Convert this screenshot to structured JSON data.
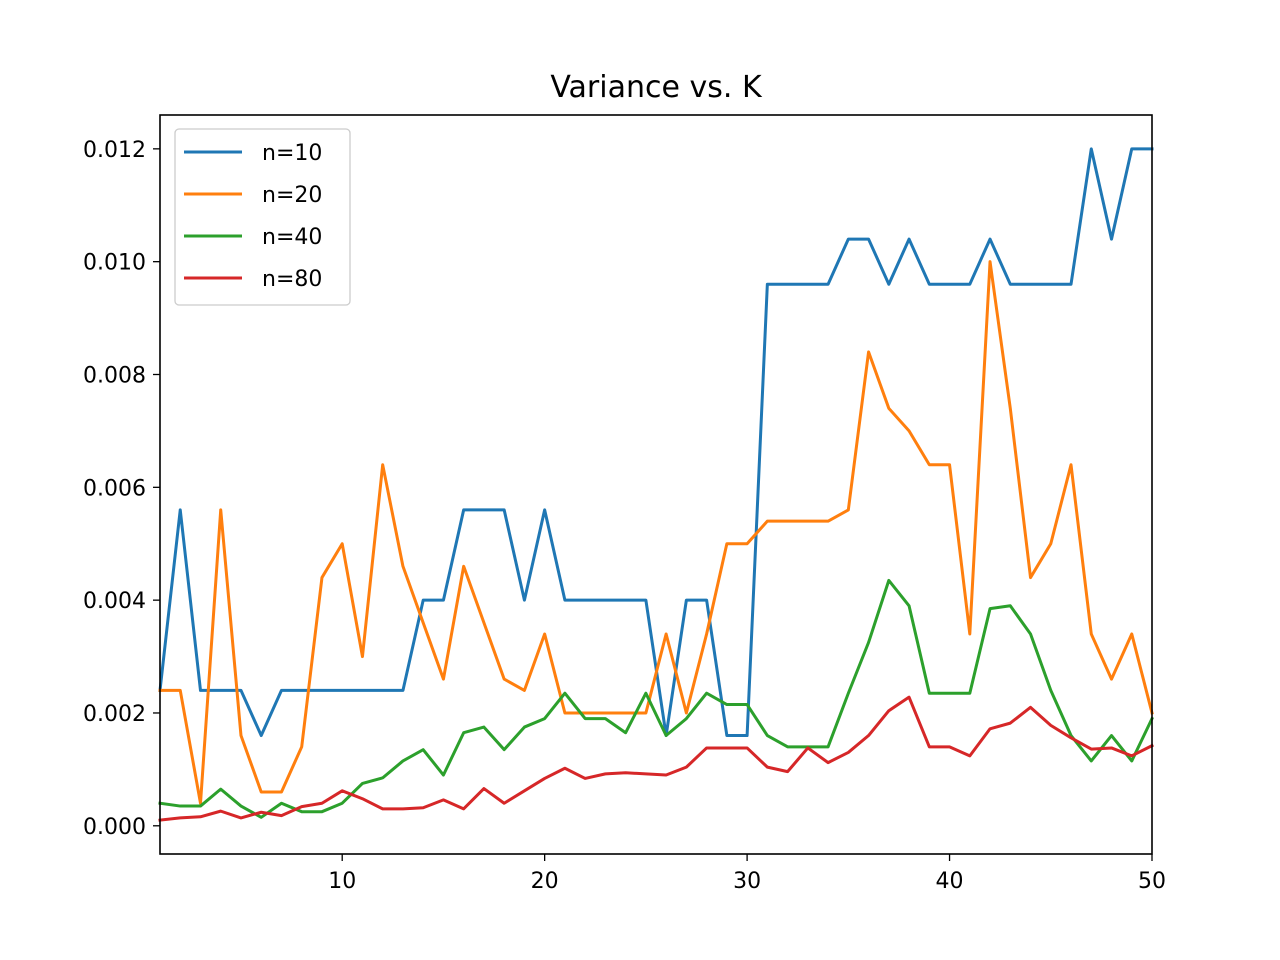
{
  "chart_data": {
    "type": "line",
    "title": "Variance vs. K",
    "xlabel": "",
    "ylabel": "",
    "xlim": [
      1,
      50
    ],
    "ylim": [
      -0.0005,
      0.0126
    ],
    "x_ticks": [
      10,
      20,
      30,
      40,
      50
    ],
    "y_ticks": [
      0.0,
      0.002,
      0.004,
      0.006,
      0.008,
      0.01,
      0.012
    ],
    "y_tick_labels": [
      "0.000",
      "0.002",
      "0.004",
      "0.006",
      "0.008",
      "0.010",
      "0.012"
    ],
    "grid": false,
    "legend_position": "top-left",
    "x": [
      1,
      2,
      3,
      4,
      5,
      6,
      7,
      8,
      9,
      10,
      11,
      12,
      13,
      14,
      15,
      16,
      17,
      18,
      19,
      20,
      21,
      22,
      23,
      24,
      25,
      26,
      27,
      28,
      29,
      30,
      31,
      32,
      33,
      34,
      35,
      36,
      37,
      38,
      39,
      40,
      41,
      42,
      43,
      44,
      45,
      46,
      47,
      48,
      49,
      50
    ],
    "series": [
      {
        "name": "n=10",
        "color": "#1f77b4",
        "values": [
          0.0024,
          0.0056,
          0.0024,
          0.0024,
          0.0024,
          0.0016,
          0.0024,
          0.0024,
          0.0024,
          0.0024,
          0.0024,
          0.0024,
          0.0024,
          0.004,
          0.004,
          0.0056,
          0.0056,
          0.0056,
          0.004,
          0.0056,
          0.004,
          0.004,
          0.004,
          0.004,
          0.004,
          0.0016,
          0.004,
          0.004,
          0.0016,
          0.0016,
          0.0096,
          0.0096,
          0.0096,
          0.0096,
          0.0104,
          0.0104,
          0.0096,
          0.0104,
          0.0096,
          0.0096,
          0.0096,
          0.0104,
          0.0096,
          0.0096,
          0.0096,
          0.0096,
          0.012,
          0.0104,
          0.012,
          0.012
        ]
      },
      {
        "name": "n=20",
        "color": "#ff7f0e",
        "values": [
          0.0024,
          0.0024,
          0.0004,
          0.0056,
          0.0016,
          0.0006,
          0.0006,
          0.0014,
          0.0044,
          0.005,
          0.003,
          0.0064,
          0.0046,
          0.0036,
          0.0026,
          0.0046,
          0.0036,
          0.0026,
          0.0024,
          0.0034,
          0.002,
          0.002,
          0.002,
          0.002,
          0.002,
          0.0034,
          0.002,
          0.0034,
          0.005,
          0.005,
          0.0054,
          0.0054,
          0.0054,
          0.0054,
          0.0056,
          0.0084,
          0.0074,
          0.007,
          0.0064,
          0.0064,
          0.0034,
          0.01,
          0.0074,
          0.0044,
          0.005,
          0.0064,
          0.0034,
          0.0026,
          0.0034,
          0.002
        ]
      },
      {
        "name": "n=40",
        "color": "#2ca02c",
        "values": [
          0.0004,
          0.00035,
          0.00035,
          0.00065,
          0.00035,
          0.00015,
          0.0004,
          0.00025,
          0.00025,
          0.0004,
          0.00075,
          0.00085,
          0.00115,
          0.00135,
          0.0009,
          0.00165,
          0.00175,
          0.00135,
          0.00175,
          0.0019,
          0.00235,
          0.0019,
          0.0019,
          0.00165,
          0.00235,
          0.0016,
          0.0019,
          0.00235,
          0.00215,
          0.00215,
          0.0016,
          0.0014,
          0.0014,
          0.0014,
          0.00235,
          0.00325,
          0.00435,
          0.0039,
          0.00235,
          0.00235,
          0.00235,
          0.00385,
          0.0039,
          0.0034,
          0.0024,
          0.0016,
          0.00115,
          0.0016,
          0.00115,
          0.0019
        ]
      },
      {
        "name": "n=80",
        "color": "#d62728",
        "values": [
          0.0001,
          0.00014,
          0.00016,
          0.00026,
          0.00014,
          0.00024,
          0.00018,
          0.00034,
          0.0004,
          0.00062,
          0.00048,
          0.0003,
          0.0003,
          0.00032,
          0.00046,
          0.0003,
          0.00066,
          0.0004,
          0.00062,
          0.00084,
          0.00102,
          0.00084,
          0.00092,
          0.00094,
          0.00092,
          0.0009,
          0.00104,
          0.00138,
          0.00138,
          0.00138,
          0.00104,
          0.00096,
          0.00138,
          0.00112,
          0.0013,
          0.0016,
          0.00204,
          0.00228,
          0.0014,
          0.0014,
          0.00124,
          0.00172,
          0.00182,
          0.0021,
          0.00178,
          0.00156,
          0.00136,
          0.00138,
          0.00124,
          0.00142
        ]
      }
    ]
  }
}
